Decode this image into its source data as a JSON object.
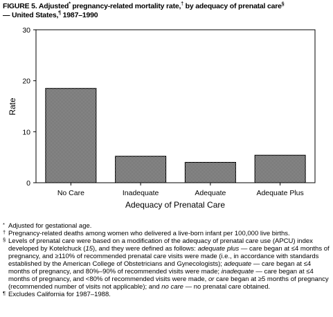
{
  "title": {
    "line1": "FIGURE 5. Adjusted",
    "mark_adj": "*",
    "line1b": " pregnancy-related mortality rate,",
    "mark_rate": "†",
    "line1c": " by adequacy of prenatal care",
    "mark_care": "§",
    "line2": "— United States,",
    "mark_us": "¶",
    "line2b": " 1987–1990"
  },
  "chart_data": {
    "type": "bar",
    "categories": [
      "No Care",
      "Inadequate",
      "Adequate",
      "Adequate Plus"
    ],
    "values": [
      18.5,
      5.2,
      4.0,
      5.4
    ],
    "ylabel": "Rate",
    "xlabel": "Adequacy of Prenatal Care",
    "ylim": [
      0,
      30
    ],
    "yticks": [
      0,
      10,
      20,
      30
    ],
    "fill": "dotted-grey",
    "grid": false,
    "legend": "none"
  },
  "footnotes": [
    {
      "mark": "*",
      "parts": [
        {
          "t": "Adjusted for gestational age."
        }
      ]
    },
    {
      "mark": "†",
      "parts": [
        {
          "t": "Pregnancy-related deaths among women who delivered a live-born infant per 100,000 live births."
        }
      ]
    },
    {
      "mark": "§",
      "parts": [
        {
          "t": "Levels of prenatal care were based on a modification of the adequacy of prenatal care use (APCU) index developed by Kotelchuck ("
        },
        {
          "t": "15",
          "i": true
        },
        {
          "t": "), and they were defined as follows: "
        },
        {
          "t": "adequate plus",
          "i": true
        },
        {
          "t": " — care began at ≤4 months of pregnancy, and ≥110% of recommended prenatal care visits were made (i.e., in accordance with standards established by the American College of Obstetricians and Gynecologists); "
        },
        {
          "t": "adequate",
          "i": true
        },
        {
          "t": " — care began at ≤4 months of pregnancy, and 80%–90% of recommended visits were made; "
        },
        {
          "t": "inadequate",
          "i": true
        },
        {
          "t": " — care began at ≤4 months of pregnancy, and <80% of recommended visits were made, "
        },
        {
          "t": "or",
          "i": true
        },
        {
          "t": " care began at ≥5 months of pregnancy (recommended number of visits not applicable); and "
        },
        {
          "t": "no care",
          "i": true
        },
        {
          "t": " — no prenatal care obtained."
        }
      ]
    },
    {
      "mark": "¶",
      "parts": [
        {
          "t": "Excludes California for 1987–1988."
        }
      ]
    }
  ]
}
